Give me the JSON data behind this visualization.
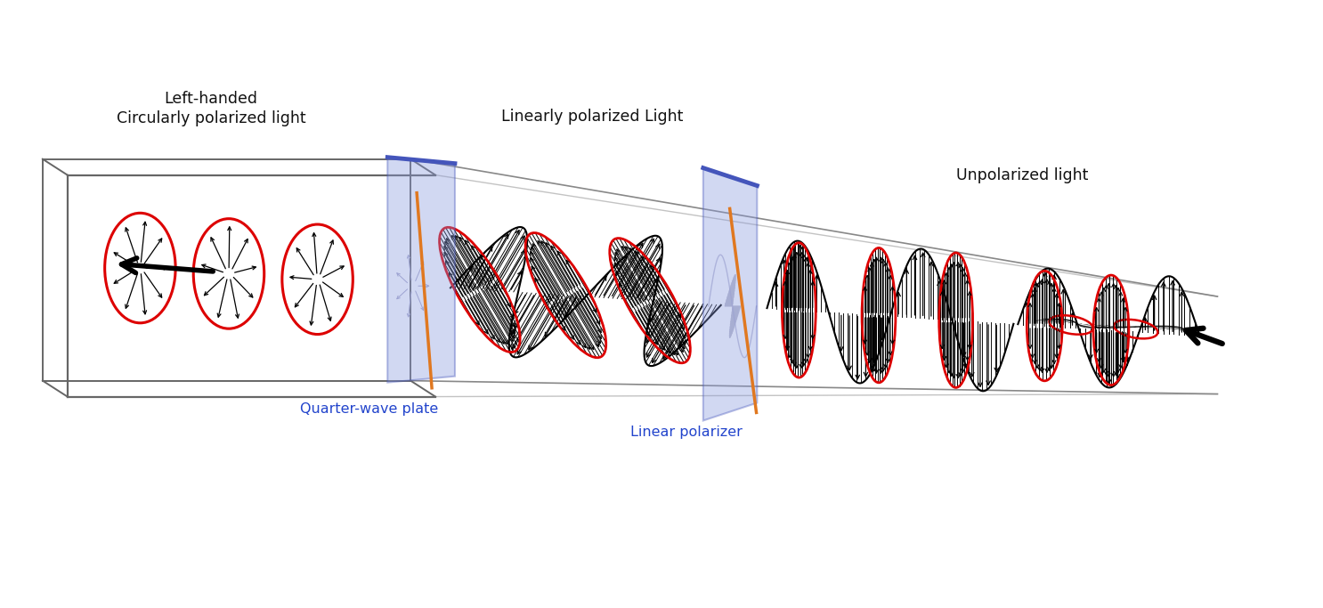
{
  "background_color": "#ffffff",
  "label_left_handed": "Left-handed\nCircularly polarized light",
  "label_linearly": "Linearly polarized Light",
  "label_unpolarized": "Unpolarized light",
  "label_quarter_wave": "Quarter-wave plate",
  "label_linear_polarizer": "Linear polarizer",
  "plate_color": "#8899dd",
  "plate_alpha": 0.38,
  "plate_edge_color": "#4455bb",
  "red_ellipse_color": "#dd0000",
  "orange_line_color": "#e07820",
  "text_color_black": "#111111",
  "text_color_blue": "#2244cc",
  "box_color": "#666666",
  "rail_color": "#888888"
}
